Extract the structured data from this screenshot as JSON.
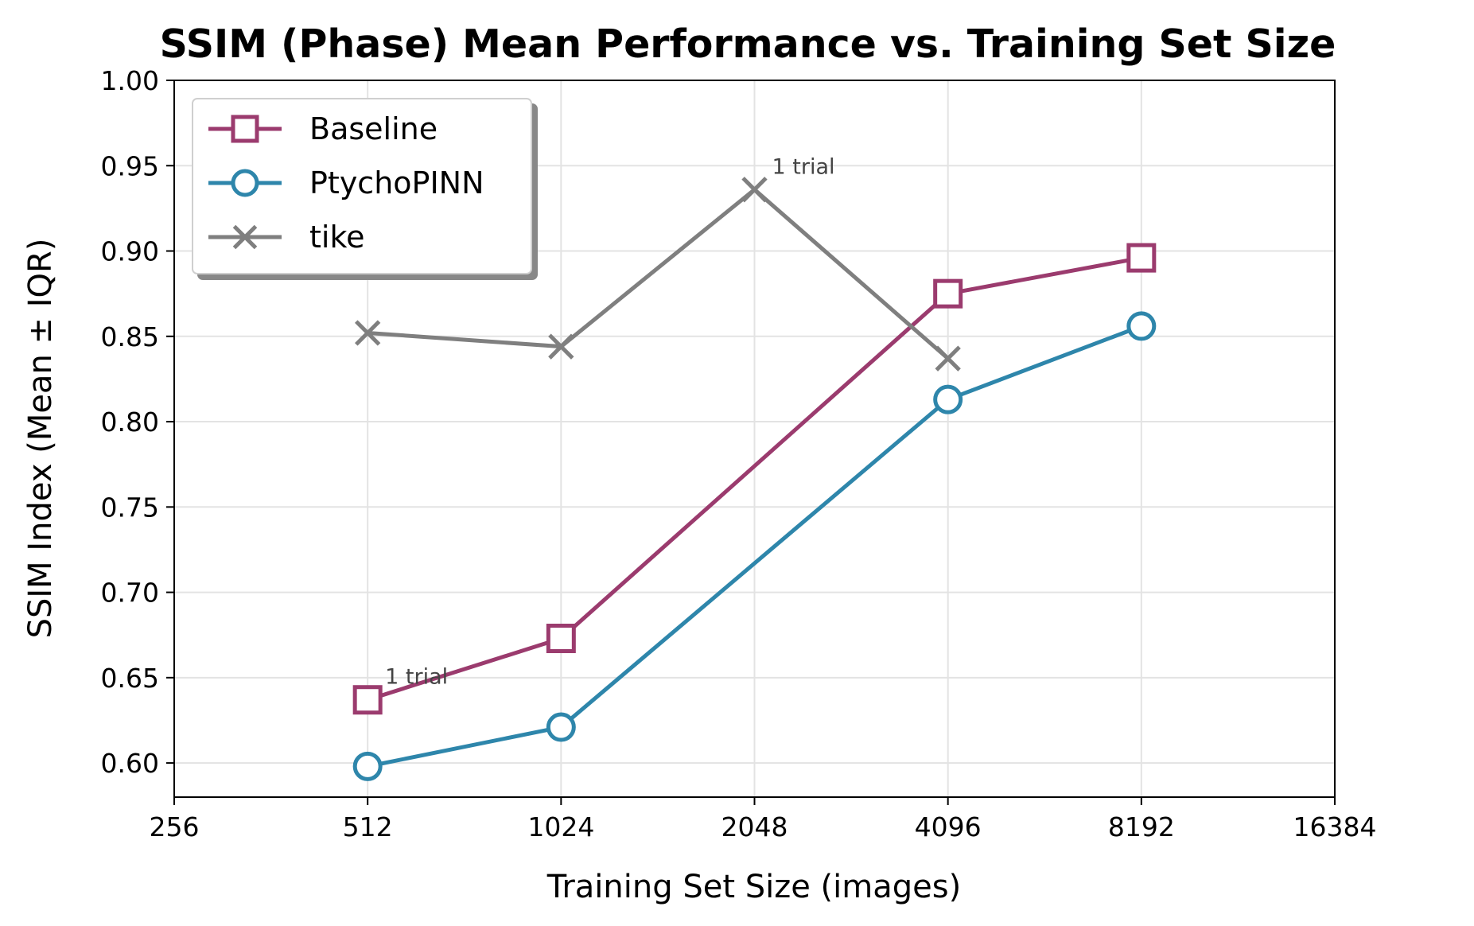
{
  "chart_data": {
    "type": "line",
    "title": "SSIM (Phase) Mean Performance vs. Training Set Size",
    "xlabel": "Training Set Size (images)",
    "ylabel": "SSIM Index (Mean ± IQR)",
    "xscale": "log2",
    "xlim": [
      256,
      16384
    ],
    "ylim": [
      0.58,
      1.0
    ],
    "xticks": [
      "256",
      "512",
      "1024",
      "2048",
      "4096",
      "8192",
      "16384"
    ],
    "yticks": [
      "0.60",
      "0.65",
      "0.70",
      "0.75",
      "0.80",
      "0.85",
      "0.90",
      "0.95",
      "1.00"
    ],
    "grid": true,
    "legend_position": "top-left",
    "series": [
      {
        "name": "Baseline",
        "color": "#9b3b6e",
        "marker": "square",
        "x": [
          512,
          1024,
          4096,
          8192
        ],
        "y": [
          0.637,
          0.673,
          0.875,
          0.896
        ]
      },
      {
        "name": "PtychoPINN",
        "color": "#2e86ab",
        "marker": "circle",
        "x": [
          512,
          1024,
          4096,
          8192
        ],
        "y": [
          0.598,
          0.621,
          0.813,
          0.856
        ]
      },
      {
        "name": "tike",
        "color": "#7f7f7f",
        "marker": "x",
        "x": [
          512,
          1024,
          2048,
          4096
        ],
        "y": [
          0.852,
          0.844,
          0.936,
          0.837
        ]
      }
    ],
    "annotations": [
      {
        "text": "1 trial",
        "x": 2048,
        "y": 0.936
      },
      {
        "text": "1 trial",
        "x": 512,
        "y": 0.637
      }
    ]
  }
}
